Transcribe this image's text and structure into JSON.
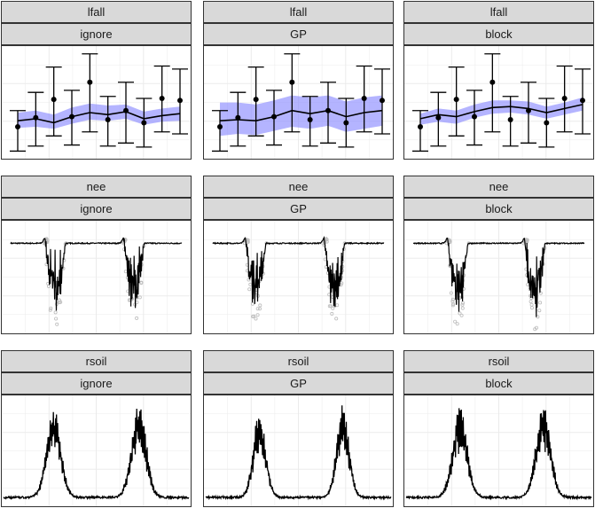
{
  "colors": {
    "ribbon": "#8c8cff",
    "line": "#000000",
    "strip_bg": "#d9d9d9",
    "grid": "#ebebeb",
    "open_points": "#bdbdbd"
  },
  "panels": [
    {
      "variable": "lfall",
      "method": "ignore"
    },
    {
      "variable": "lfall",
      "method": "GP"
    },
    {
      "variable": "lfall",
      "method": "block"
    },
    {
      "variable": "nee",
      "method": "ignore"
    },
    {
      "variable": "nee",
      "method": "GP"
    },
    {
      "variable": "nee",
      "method": "block"
    },
    {
      "variable": "rsoil",
      "method": "ignore"
    },
    {
      "variable": "rsoil",
      "method": "GP"
    },
    {
      "variable": "rsoil",
      "method": "block"
    }
  ],
  "chart_data": [
    {
      "type": "line",
      "title": "lfall",
      "facets": [
        "ignore",
        "GP",
        "block"
      ],
      "x": [
        1,
        2,
        3,
        4,
        5,
        6,
        7,
        8,
        9,
        10
      ],
      "ylim": [
        0,
        1
      ],
      "observations": {
        "mean": [
          0.28,
          0.37,
          0.55,
          0.38,
          0.72,
          0.35,
          0.44,
          0.32,
          0.56,
          0.54
        ],
        "lower": [
          0.04,
          0.09,
          0.19,
          0.1,
          0.23,
          0.09,
          0.12,
          0.08,
          0.23,
          0.21
        ],
        "upper": [
          0.44,
          0.62,
          0.87,
          0.64,
          1.0,
          0.58,
          0.72,
          0.56,
          0.88,
          0.85
        ]
      },
      "series": [
        {
          "name": "ignore",
          "values": [
            0.34,
            0.36,
            0.32,
            0.38,
            0.42,
            0.4,
            0.43,
            0.36,
            0.39,
            0.41
          ],
          "lower": [
            0.27,
            0.28,
            0.26,
            0.31,
            0.35,
            0.34,
            0.36,
            0.3,
            0.33,
            0.34
          ],
          "upper": [
            0.42,
            0.44,
            0.4,
            0.47,
            0.51,
            0.49,
            0.5,
            0.43,
            0.46,
            0.48
          ]
        },
        {
          "name": "GP",
          "values": [
            0.34,
            0.35,
            0.34,
            0.38,
            0.44,
            0.41,
            0.44,
            0.38,
            0.42,
            0.44
          ],
          "lower": [
            0.19,
            0.21,
            0.2,
            0.24,
            0.28,
            0.26,
            0.29,
            0.23,
            0.26,
            0.29
          ],
          "upper": [
            0.52,
            0.52,
            0.5,
            0.54,
            0.59,
            0.57,
            0.59,
            0.53,
            0.57,
            0.59
          ]
        },
        {
          "name": "block",
          "values": [
            0.36,
            0.4,
            0.38,
            0.43,
            0.47,
            0.48,
            0.46,
            0.42,
            0.46,
            0.5
          ],
          "lower": [
            0.3,
            0.33,
            0.31,
            0.37,
            0.41,
            0.42,
            0.4,
            0.36,
            0.4,
            0.44
          ],
          "upper": [
            0.41,
            0.46,
            0.44,
            0.5,
            0.54,
            0.54,
            0.53,
            0.48,
            0.52,
            0.57
          ]
        }
      ]
    },
    {
      "type": "line",
      "title": "nee",
      "facets": [
        "ignore",
        "GP",
        "block"
      ],
      "ylim": [
        -1,
        0.25
      ],
      "description_of_series": "Flat near 0 with two deep negative dips around x 0.25 and 0.70; open circles are observations below the fitted line",
      "series": [
        {
          "name": "ignore",
          "baseline": 0.0,
          "dips": [
            {
              "center": 0.26,
              "width": 0.06,
              "depth": -0.82
            },
            {
              "center": 0.72,
              "width": 0.06,
              "depth": -0.82
            }
          ]
        },
        {
          "name": "GP",
          "baseline": 0.0,
          "dips": [
            {
              "center": 0.25,
              "width": 0.06,
              "depth": -0.8
            },
            {
              "center": 0.71,
              "width": 0.06,
              "depth": -0.8
            }
          ]
        },
        {
          "name": "block",
          "baseline": 0.0,
          "dips": [
            {
              "center": 0.26,
              "width": 0.06,
              "depth": -0.85
            },
            {
              "center": 0.71,
              "width": 0.06,
              "depth": -0.85
            }
          ]
        }
      ]
    },
    {
      "type": "line",
      "title": "rsoil",
      "facets": [
        "ignore",
        "GP",
        "block"
      ],
      "ylim": [
        0,
        1
      ],
      "series": [
        {
          "name": "ignore",
          "peaks": [
            {
              "center": 0.27,
              "width": 0.07,
              "height": 0.82
            },
            {
              "center": 0.73,
              "width": 0.07,
              "height": 0.88
            }
          ]
        },
        {
          "name": "GP",
          "peaks": [
            {
              "center": 0.29,
              "width": 0.06,
              "height": 0.8
            },
            {
              "center": 0.74,
              "width": 0.06,
              "height": 0.85
            }
          ]
        },
        {
          "name": "block",
          "peaks": [
            {
              "center": 0.29,
              "width": 0.07,
              "height": 0.83
            },
            {
              "center": 0.74,
              "width": 0.07,
              "height": 0.86
            }
          ]
        }
      ]
    }
  ]
}
